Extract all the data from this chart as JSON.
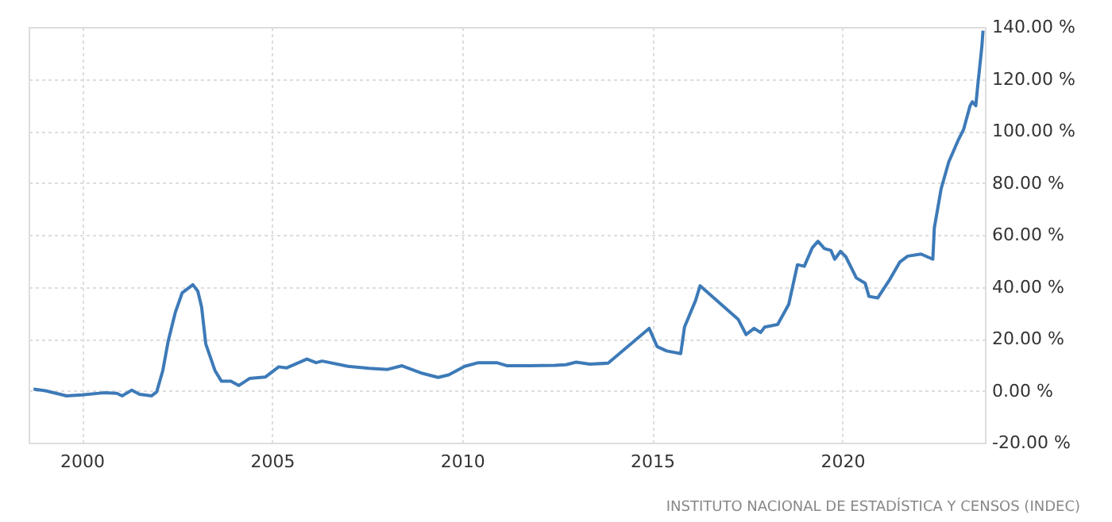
{
  "chart_data": {
    "type": "line",
    "x": [
      1998.73,
      1999.04,
      1999.6,
      2000.01,
      2000.57,
      2000.92,
      2001.06,
      2001.31,
      2001.52,
      2001.83,
      2001.97,
      2002.13,
      2002.27,
      2002.46,
      2002.64,
      2002.92,
      2003.05,
      2003.15,
      2003.26,
      2003.5,
      2003.67,
      2003.92,
      2004.13,
      2004.41,
      2004.83,
      2005.18,
      2005.39,
      2005.92,
      2006.16,
      2006.32,
      2007.0,
      2007.55,
      2008.04,
      2008.42,
      2008.95,
      2009.37,
      2009.65,
      2010.07,
      2010.43,
      2010.91,
      2011.19,
      2011.75,
      2012.45,
      2012.73,
      2013.0,
      2013.36,
      2013.84,
      2014.92,
      2015.13,
      2015.38,
      2015.75,
      2015.85,
      2016.14,
      2016.26,
      2017.26,
      2017.47,
      2017.68,
      2017.85,
      2017.96,
      2018.3,
      2018.59,
      2018.82,
      2019.0,
      2019.21,
      2019.36,
      2019.53,
      2019.7,
      2019.8,
      2019.95,
      2020.09,
      2020.37,
      2020.6,
      2020.7,
      2020.93,
      2021.23,
      2021.51,
      2021.72,
      2022.07,
      2022.38,
      2022.42,
      2022.6,
      2022.8,
      2023.05,
      2023.19,
      2023.36,
      2023.42,
      2023.51,
      2023.56,
      2023.67,
      2023.7
    ],
    "series": [
      {
        "color": "#3d7ab8",
        "values": [
          0.6,
          0,
          -2,
          -1.6,
          -0.8,
          -1,
          -2,
          0.2,
          -1.4,
          -2,
          -0.4,
          7.8,
          19,
          30.2,
          37.7,
          40.8,
          38.3,
          32.2,
          18,
          7.8,
          3.7,
          3.7,
          2,
          4.7,
          5.3,
          9.2,
          8.8,
          12.2,
          10.8,
          11.4,
          9.4,
          8.6,
          8.2,
          9.6,
          6.7,
          5.1,
          6.1,
          9.4,
          10.8,
          10.8,
          9.6,
          9.6,
          9.8,
          10,
          11,
          10.2,
          10.6,
          24,
          17,
          15.3,
          14.3,
          24.5,
          34.7,
          40.4,
          27.5,
          21.6,
          24,
          22.4,
          24.5,
          25.5,
          33.2,
          48.5,
          47.9,
          55,
          57.5,
          54.7,
          54,
          50.6,
          53.6,
          51.6,
          43.4,
          41.4,
          36.3,
          35.7,
          42.4,
          49.5,
          51.8,
          52.6,
          50.6,
          62.7,
          77.8,
          88.1,
          96.5,
          100.6,
          109.7,
          111.2,
          109.7,
          117.2,
          132.5,
          138.6
        ]
      }
    ],
    "xlim": [
      1998.6,
      2023.75
    ],
    "xticks": [
      2000,
      2005,
      2010,
      2015,
      2020
    ],
    "ylim": [
      -20,
      140
    ],
    "yticks": [
      {
        "value": -20,
        "label": "-20.00 %"
      },
      {
        "value": 0,
        "label": "0.00 %"
      },
      {
        "value": 20,
        "label": "20.00 %"
      },
      {
        "value": 40,
        "label": "40.00 %"
      },
      {
        "value": 60,
        "label": "60.00 %"
      },
      {
        "value": 80,
        "label": "80.00 %"
      },
      {
        "value": 100,
        "label": "100.00 %"
      },
      {
        "value": 120,
        "label": "120.00 %"
      },
      {
        "value": 140,
        "label": "140.00 %"
      }
    ],
    "grid": true,
    "marker": "none",
    "line_style": "solid",
    "annotations": [
      "INSTITUTO NACIONAL DE ESTADÍSTICA Y CENSOS (INDEC)"
    ]
  }
}
